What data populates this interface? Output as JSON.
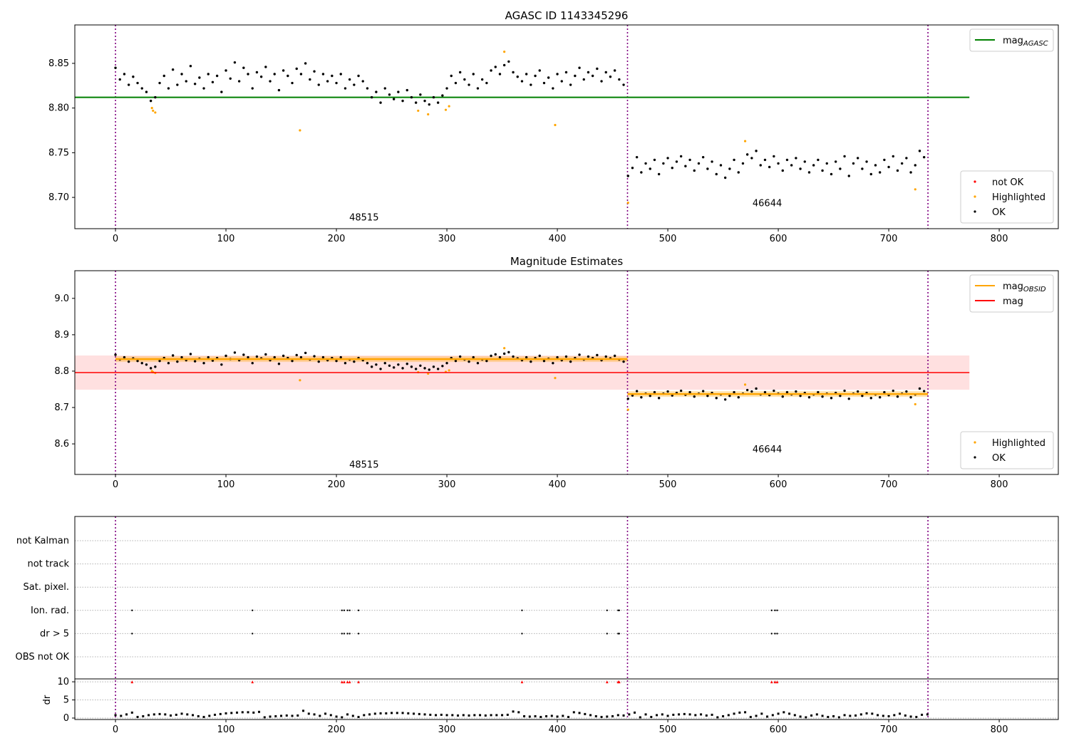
{
  "chart_data": [
    {
      "type": "scatter",
      "title": "AGASC ID 1143345296",
      "xlim": [
        -36.8,
        853.5
      ],
      "ylim": [
        8.665,
        8.893
      ],
      "xticks": [
        0,
        100,
        200,
        300,
        400,
        500,
        600,
        700,
        800
      ],
      "yticks": [
        8.7,
        8.75,
        8.8,
        8.85
      ],
      "ytick_decimals": 2,
      "obsid_boundaries": [
        0,
        463.5,
        735.5
      ],
      "obsid_labels": [
        {
          "text": "48515",
          "x": 225,
          "y": 8.674
        },
        {
          "text": "46644",
          "x": 590,
          "y": 8.69
        }
      ],
      "mag_agasc": {
        "value": 8.812,
        "x_range": [
          -36.8,
          773
        ]
      },
      "legend_upper": {
        "position": "top-right",
        "entries": [
          {
            "label": "mag",
            "sub": "AGASC",
            "color": "#008000"
          }
        ]
      },
      "legend_lower": {
        "position": "bottom-right",
        "entries": [
          {
            "label": "not OK",
            "color": "#ff0000"
          },
          {
            "label": "Highlighted",
            "color": "#ffa500"
          },
          {
            "label": "OK",
            "color": "#000000"
          }
        ]
      }
    },
    {
      "type": "scatter",
      "title": "Magnitude Estimates",
      "xlim": [
        -36.8,
        853.5
      ],
      "ylim": [
        8.516,
        9.076
      ],
      "xticks": [
        0,
        100,
        200,
        300,
        400,
        500,
        600,
        700,
        800
      ],
      "yticks": [
        8.6,
        8.7,
        8.8,
        8.9,
        9.0
      ],
      "ytick_decimals": 1,
      "obsid_boundaries": [
        0,
        463.5,
        735.5
      ],
      "obsid_labels": [
        {
          "text": "48515",
          "x": 225,
          "y": 8.535
        },
        {
          "text": "46644",
          "x": 590,
          "y": 8.577
        }
      ],
      "mag": {
        "value": 8.796,
        "band": [
          8.749,
          8.843
        ],
        "x_range": [
          -36.8,
          773
        ]
      },
      "mag_obsid": [
        {
          "x_range": [
            0,
            463.5
          ],
          "value": 8.833
        },
        {
          "x_range": [
            463.5,
            735.5
          ],
          "value": 8.737
        }
      ],
      "legend_upper": {
        "position": "top-right",
        "entries": [
          {
            "label": "mag",
            "sub": "OBSID",
            "color": "#ffa500"
          },
          {
            "label": "mag",
            "sub": "",
            "color": "#ff0000"
          }
        ]
      },
      "legend_lower": {
        "position": "bottom-right",
        "entries": [
          {
            "label": "Highlighted",
            "color": "#ffa500"
          },
          {
            "label": "OK",
            "color": "#000000"
          }
        ]
      }
    },
    {
      "type": "scatter",
      "xlim": [
        -36.8,
        853.5
      ],
      "xticks": [
        0,
        100,
        200,
        300,
        400,
        500,
        600,
        700,
        800
      ],
      "flag_rows": [
        "OBS not OK",
        "dr > 5",
        "Ion. rad.",
        "Sat. pixel.",
        "not track",
        "not Kalman"
      ],
      "flags": {
        "dr > 5": [
          15,
          124,
          205,
          207,
          210,
          212,
          220,
          368,
          445,
          455,
          456,
          594,
          597,
          599
        ],
        "Ion. rad.": [
          15,
          124,
          205,
          207,
          210,
          212,
          220,
          368,
          445,
          455,
          456,
          594,
          597,
          599
        ]
      },
      "dr_ylabel": "dr",
      "dr_ylim": [
        -0.4,
        10.8
      ],
      "dr_yticks": [
        0,
        5,
        10
      ],
      "dr_clipped_x": [
        15,
        124,
        205,
        207,
        210,
        212,
        220,
        368,
        445,
        455,
        456,
        594,
        597,
        599
      ],
      "dr_clip_value": 10,
      "dr": {
        "x_start": 0,
        "x_step": 5,
        "values": [
          0.8,
          0.6,
          1.0,
          1.5,
          0.3,
          0.5,
          0.8,
          1.0,
          1.1,
          1.0,
          0.7,
          0.9,
          1.2,
          1.0,
          0.8,
          0.5,
          0.3,
          0.6,
          0.9,
          1.1,
          1.3,
          1.4,
          1.5,
          1.6,
          1.6,
          1.5,
          1.7,
          0.2,
          0.4,
          0.5,
          0.6,
          0.7,
          0.6,
          0.7,
          2.0,
          1.2,
          1.0,
          0.6,
          1.2,
          0.8,
          0.4,
          0.2,
          1.0,
          0.6,
          0.3,
          0.8,
          1.0,
          1.2,
          1.3,
          1.3,
          1.4,
          1.4,
          1.4,
          1.3,
          1.2,
          1.1,
          1.0,
          0.9,
          0.8,
          0.9,
          0.8,
          0.8,
          0.7,
          0.8,
          0.7,
          0.8,
          0.8,
          0.7,
          0.8,
          0.8,
          0.8,
          0.9,
          1.8,
          1.6,
          0.5,
          0.4,
          0.5,
          0.3,
          0.5,
          0.6,
          0.4,
          0.6,
          0.3,
          1.6,
          1.4,
          1.1,
          0.8,
          0.5,
          0.3,
          0.4,
          0.5,
          0.8,
          0.7,
          1.0,
          1.5,
          0.2,
          1.0,
          0.3,
          0.8,
          1.0,
          0.6,
          0.9,
          1.0,
          1.1,
          1.0,
          0.8,
          1.0,
          0.7,
          0.9,
          0.2,
          0.5,
          0.8,
          1.2,
          1.5,
          1.6,
          0.3,
          0.6,
          1.2,
          0.4,
          0.8,
          1.2,
          1.6,
          1.2,
          0.8,
          0.4,
          0.2,
          0.7,
          1.0,
          0.6,
          0.3,
          0.5,
          0.2,
          0.8,
          0.6,
          0.7,
          1.0,
          1.3,
          1.2,
          0.8,
          0.6,
          0.5,
          0.8,
          1.2,
          0.7,
          0.4,
          0.3,
          0.9,
          1.0
        ]
      }
    }
  ],
  "mag_series": {
    "ok_segments": [
      {
        "x_start": 0,
        "x_step": 4,
        "values": [
          8.845,
          8.832,
          8.838,
          8.826,
          8.835,
          8.828,
          8.822,
          8.818,
          8.808,
          8.812,
          8.828,
          8.836,
          8.822,
          8.843,
          8.826,
          8.838,
          8.83,
          8.847,
          8.827,
          8.834,
          8.822,
          8.838,
          8.829,
          8.836,
          8.818,
          8.842,
          8.833,
          8.851,
          8.83,
          8.845,
          8.838,
          8.822,
          8.84,
          8.835,
          8.846,
          8.83,
          8.838,
          8.82,
          8.842,
          8.836,
          8.828,
          8.844,
          8.838,
          8.85,
          8.832,
          8.841,
          8.826,
          8.838,
          8.83,
          8.836,
          8.828,
          8.838,
          8.822,
          8.832,
          8.826,
          8.836,
          8.83,
          8.822,
          8.812,
          8.818,
          8.806,
          8.822,
          8.815,
          8.81,
          8.818,
          8.808,
          8.82,
          8.812,
          8.806,
          8.815,
          8.808,
          8.804,
          8.812,
          8.806,
          8.814,
          8.822,
          8.836,
          8.828,
          8.84,
          8.832,
          8.826,
          8.838,
          8.822,
          8.832,
          8.828,
          8.842,
          8.846,
          8.838,
          8.848,
          8.852,
          8.84,
          8.835,
          8.83,
          8.838,
          8.826,
          8.836,
          8.842,
          8.828,
          8.834,
          8.822,
          8.838,
          8.83,
          8.84,
          8.826,
          8.836,
          8.845,
          8.832,
          8.84,
          8.836,
          8.844,
          8.83,
          8.84,
          8.835,
          8.842,
          8.832,
          8.826
        ]
      },
      {
        "x_start": 464,
        "x_step": 4,
        "values": [
          8.724,
          8.733,
          8.745,
          8.728,
          8.738,
          8.732,
          8.742,
          8.726,
          8.738,
          8.744,
          8.733,
          8.74,
          8.746,
          8.735,
          8.742,
          8.73,
          8.738,
          8.745,
          8.732,
          8.74,
          8.726,
          8.736,
          8.722,
          8.732,
          8.742,
          8.728,
          8.738,
          8.748,
          8.744,
          8.752,
          8.736,
          8.742,
          8.734,
          8.746,
          8.738,
          8.73,
          8.742,
          8.736,
          8.744,
          8.732,
          8.74,
          8.728,
          8.736,
          8.742,
          8.73,
          8.738,
          8.726,
          8.74,
          8.732,
          8.746,
          8.724,
          8.738,
          8.744,
          8.732,
          8.74,
          8.726,
          8.736,
          8.728,
          8.742,
          8.734,
          8.746,
          8.73,
          8.738,
          8.744,
          8.728,
          8.736,
          8.752,
          8.745
        ]
      }
    ],
    "highlighted": [
      [
        33,
        8.8
      ],
      [
        34,
        8.797
      ],
      [
        36,
        8.795
      ],
      [
        167,
        8.775
      ],
      [
        274,
        8.797
      ],
      [
        283,
        8.793
      ],
      [
        299,
        8.798
      ],
      [
        302,
        8.802
      ],
      [
        352,
        8.863
      ],
      [
        398,
        8.781
      ],
      [
        464,
        8.694
      ],
      [
        570,
        8.763
      ],
      [
        724,
        8.709
      ]
    ],
    "colors": {
      "ok": "#000000",
      "highlighted": "#ffa500",
      "not_ok": "#ff0000",
      "boundary": "#800080",
      "grid": "#b0b0b0"
    }
  }
}
